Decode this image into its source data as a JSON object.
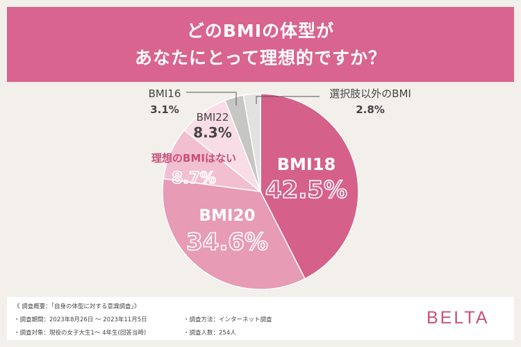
{
  "title": {
    "line1": "どのBMIの体型が",
    "line2": "あなたにとって理想的ですか？"
  },
  "colors": {
    "header_bg": "#d9648f",
    "background": "#f3efea",
    "brand": "#c8507a",
    "slices": [
      "#d5608a",
      "#e79bb5",
      "#f1bfd0",
      "#f8dde6",
      "#c6c6c4",
      "#e2e2e0"
    ]
  },
  "chart_data": {
    "type": "pie",
    "start_angle_deg": 0,
    "direction": "clockwise",
    "slices": [
      {
        "label": "BMI18",
        "value": 42.5,
        "display": "42.5%"
      },
      {
        "label": "BMI20",
        "value": 34.6,
        "display": "34.6%"
      },
      {
        "label": "理想のBMIはない",
        "value": 8.7,
        "display": "8.7%"
      },
      {
        "label": "BMI22",
        "value": 8.3,
        "display": "8.3%"
      },
      {
        "label": "BMI16",
        "value": 3.1,
        "display": "3.1%"
      },
      {
        "label": "選択肢以外のBMI",
        "value": 2.8,
        "display": "2.8%"
      }
    ]
  },
  "footer": {
    "heading": "《 調査概要：「自身の体型に対する意識調査」》",
    "period": "・調査期間：2023年8月26日 ～ 2023年11月5日",
    "method": "・調査方法：インターネット調査",
    "target": "・調査対象：現役の女子大生1～ 4年生(回答当時)",
    "count": "・調査人数：254人",
    "brand": "BELTA"
  }
}
